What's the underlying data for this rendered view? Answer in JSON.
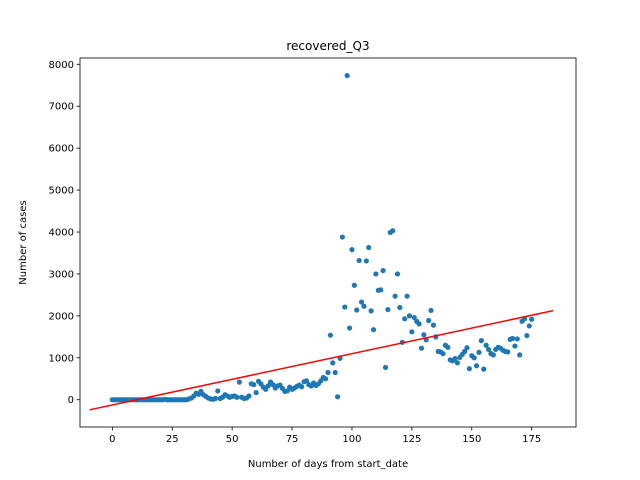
{
  "chart_data": {
    "type": "scatter",
    "title": "recovered_Q3",
    "xlabel": "Number of days from start_date",
    "ylabel": "Number of cases",
    "xlim": [
      -13.5,
      193.5
    ],
    "ylim": [
      -650,
      8150
    ],
    "xticks": [
      0,
      25,
      50,
      75,
      100,
      125,
      150,
      175
    ],
    "yticks": [
      0,
      1000,
      2000,
      3000,
      4000,
      5000,
      6000,
      7000,
      8000
    ],
    "grid": false,
    "colors": {
      "points": "#1f77b4",
      "trend": "#ff0000",
      "axes": "#000000"
    },
    "trendline": {
      "x": [
        -9.5,
        184
      ],
      "y": [
        -240,
        2125
      ]
    },
    "points": [
      [
        0,
        0
      ],
      [
        1,
        0
      ],
      [
        2,
        0
      ],
      [
        3,
        0
      ],
      [
        4,
        0
      ],
      [
        5,
        0
      ],
      [
        6,
        0
      ],
      [
        7,
        0
      ],
      [
        8,
        0
      ],
      [
        9,
        0
      ],
      [
        10,
        0
      ],
      [
        11,
        0
      ],
      [
        12,
        0
      ],
      [
        13,
        0
      ],
      [
        14,
        0
      ],
      [
        15,
        0
      ],
      [
        16,
        0
      ],
      [
        17,
        0
      ],
      [
        18,
        0
      ],
      [
        19,
        0
      ],
      [
        20,
        0
      ],
      [
        21,
        0
      ],
      [
        22,
        10
      ],
      [
        23,
        0
      ],
      [
        24,
        0
      ],
      [
        25,
        0
      ],
      [
        26,
        0
      ],
      [
        27,
        0
      ],
      [
        28,
        0
      ],
      [
        29,
        0
      ],
      [
        30,
        0
      ],
      [
        31,
        0
      ],
      [
        32,
        20
      ],
      [
        33,
        40
      ],
      [
        34,
        90
      ],
      [
        35,
        160
      ],
      [
        36,
        130
      ],
      [
        37,
        200
      ],
      [
        38,
        120
      ],
      [
        39,
        80
      ],
      [
        40,
        40
      ],
      [
        41,
        20
      ],
      [
        42,
        10
      ],
      [
        43,
        30
      ],
      [
        44,
        210
      ],
      [
        45,
        30
      ],
      [
        46,
        60
      ],
      [
        47,
        120
      ],
      [
        48,
        90
      ],
      [
        49,
        60
      ],
      [
        50,
        80
      ],
      [
        51,
        90
      ],
      [
        52,
        60
      ],
      [
        53,
        420
      ],
      [
        54,
        60
      ],
      [
        55,
        30
      ],
      [
        56,
        40
      ],
      [
        57,
        90
      ],
      [
        58,
        380
      ],
      [
        59,
        360
      ],
      [
        60,
        170
      ],
      [
        61,
        440
      ],
      [
        62,
        380
      ],
      [
        63,
        300
      ],
      [
        64,
        250
      ],
      [
        65,
        330
      ],
      [
        66,
        420
      ],
      [
        67,
        360
      ],
      [
        68,
        280
      ],
      [
        69,
        330
      ],
      [
        70,
        350
      ],
      [
        71,
        270
      ],
      [
        72,
        200
      ],
      [
        73,
        210
      ],
      [
        74,
        300
      ],
      [
        75,
        250
      ],
      [
        76,
        280
      ],
      [
        77,
        320
      ],
      [
        78,
        350
      ],
      [
        79,
        310
      ],
      [
        80,
        430
      ],
      [
        81,
        450
      ],
      [
        82,
        360
      ],
      [
        83,
        330
      ],
      [
        84,
        400
      ],
      [
        85,
        340
      ],
      [
        86,
        380
      ],
      [
        87,
        450
      ],
      [
        88,
        530
      ],
      [
        89,
        500
      ],
      [
        90,
        650
      ],
      [
        91,
        1540
      ],
      [
        92,
        880
      ],
      [
        93,
        650
      ],
      [
        94,
        70
      ],
      [
        95,
        990
      ],
      [
        96,
        3880
      ],
      [
        97,
        2210
      ],
      [
        98,
        7730
      ],
      [
        99,
        1710
      ],
      [
        100,
        3580
      ],
      [
        101,
        2730
      ],
      [
        102,
        2140
      ],
      [
        103,
        3320
      ],
      [
        104,
        2330
      ],
      [
        105,
        2230
      ],
      [
        106,
        3310
      ],
      [
        107,
        3630
      ],
      [
        108,
        2120
      ],
      [
        109,
        1670
      ],
      [
        110,
        3000
      ],
      [
        111,
        2610
      ],
      [
        112,
        2620
      ],
      [
        113,
        3080
      ],
      [
        114,
        770
      ],
      [
        115,
        2150
      ],
      [
        116,
        3990
      ],
      [
        117,
        4030
      ],
      [
        118,
        2470
      ],
      [
        119,
        3000
      ],
      [
        120,
        2200
      ],
      [
        121,
        1370
      ],
      [
        122,
        1930
      ],
      [
        123,
        2470
      ],
      [
        124,
        2000
      ],
      [
        125,
        1620
      ],
      [
        126,
        1960
      ],
      [
        127,
        1870
      ],
      [
        128,
        1810
      ],
      [
        129,
        1230
      ],
      [
        130,
        1550
      ],
      [
        131,
        1430
      ],
      [
        132,
        1890
      ],
      [
        133,
        2130
      ],
      [
        134,
        1780
      ],
      [
        135,
        1500
      ],
      [
        136,
        1150
      ],
      [
        137,
        1140
      ],
      [
        138,
        1100
      ],
      [
        139,
        1300
      ],
      [
        140,
        1250
      ],
      [
        141,
        950
      ],
      [
        142,
        930
      ],
      [
        143,
        980
      ],
      [
        144,
        880
      ],
      [
        145,
        1010
      ],
      [
        146,
        1080
      ],
      [
        147,
        1150
      ],
      [
        148,
        1240
      ],
      [
        149,
        740
      ],
      [
        150,
        1050
      ],
      [
        151,
        1000
      ],
      [
        152,
        810
      ],
      [
        153,
        1130
      ],
      [
        154,
        1410
      ],
      [
        155,
        730
      ],
      [
        156,
        1300
      ],
      [
        157,
        1200
      ],
      [
        158,
        1100
      ],
      [
        159,
        1070
      ],
      [
        160,
        1200
      ],
      [
        161,
        1250
      ],
      [
        162,
        1230
      ],
      [
        163,
        1180
      ],
      [
        164,
        1150
      ],
      [
        165,
        1140
      ],
      [
        166,
        1440
      ],
      [
        167,
        1460
      ],
      [
        168,
        1280
      ],
      [
        169,
        1450
      ],
      [
        170,
        1070
      ],
      [
        171,
        1870
      ],
      [
        172,
        1930
      ],
      [
        173,
        1530
      ],
      [
        174,
        1760
      ],
      [
        175,
        1920
      ]
    ]
  }
}
